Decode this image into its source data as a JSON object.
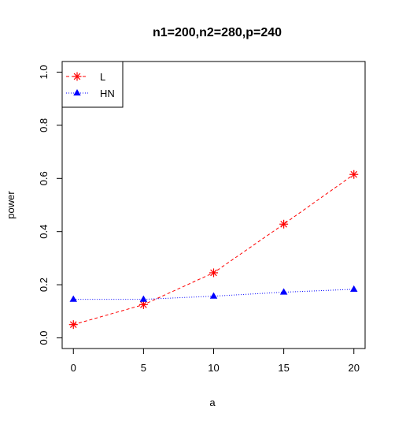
{
  "chart_data": {
    "type": "line",
    "title": "n1=200,n2=280,p=240",
    "xlabel": "a",
    "ylabel": "power",
    "x": [
      0,
      5,
      10,
      15,
      20
    ],
    "xlim": [
      -0.8,
      20.8
    ],
    "ylim": [
      -0.04,
      1.04
    ],
    "x_ticks": [
      "0",
      "5",
      "10",
      "15",
      "20"
    ],
    "y_ticks": [
      "0.0",
      "0.2",
      "0.4",
      "0.6",
      "0.8",
      "1.0"
    ],
    "legend_position": "top-left",
    "series": [
      {
        "name": "L",
        "values": [
          0.05,
          0.125,
          0.245,
          0.428,
          0.615
        ],
        "color": "#ff0000",
        "marker": "asterisk",
        "line": "dashed"
      },
      {
        "name": "HN",
        "values": [
          0.145,
          0.145,
          0.157,
          0.172,
          0.183
        ],
        "color": "#0000ff",
        "marker": "triangle",
        "line": "dotted"
      }
    ]
  }
}
